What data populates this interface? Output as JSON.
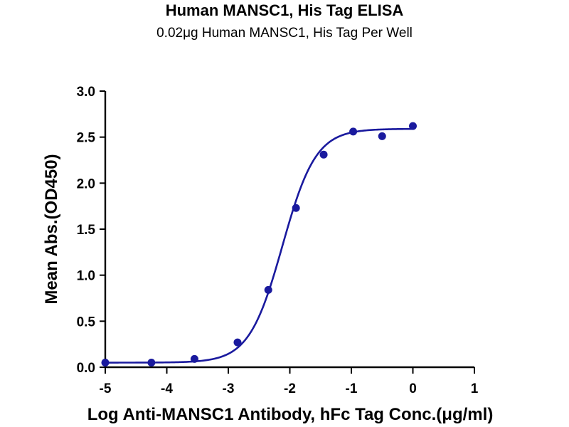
{
  "chart_data": {
    "type": "scatter",
    "title": "Human MANSC1, His Tag ELISA",
    "subtitle": "0.02μg Human MANSC1, His Tag Per Well",
    "xlabel": "Log  Anti-MANSC1 Antibody, hFc Tag Conc.(μg/ml)",
    "ylabel": "Mean Abs.(OD450)",
    "xlim": [
      -5,
      1
    ],
    "ylim": [
      0,
      3
    ],
    "x_ticks": [
      -5,
      -4,
      -3,
      -2,
      -1,
      0,
      1
    ],
    "x_tick_labels": [
      "-5",
      "-4",
      "-3",
      "-2",
      "-1",
      "0",
      "1"
    ],
    "y_ticks": [
      0,
      0.5,
      1,
      1.5,
      2,
      2.5,
      3
    ],
    "y_tick_labels": [
      "0.0",
      "0.5",
      "1.0",
      "1.5",
      "2.0",
      "2.5",
      "3.0"
    ],
    "grid": false,
    "legend": "none",
    "color": "#1a1a9e",
    "series": [
      {
        "x": [
          -5,
          -4.25,
          -3.55,
          -2.85,
          -2.35,
          -1.9,
          -1.45,
          -0.97,
          -0.5,
          0
        ],
        "y": [
          0.05,
          0.05,
          0.09,
          0.27,
          0.84,
          1.73,
          2.31,
          2.56,
          2.51,
          2.62
        ]
      }
    ],
    "fit_curve": {
      "model": "4PL",
      "bottom": 0.05,
      "top": 2.59,
      "log_ec50": -2.12,
      "hill_slope": 1.6
    }
  }
}
